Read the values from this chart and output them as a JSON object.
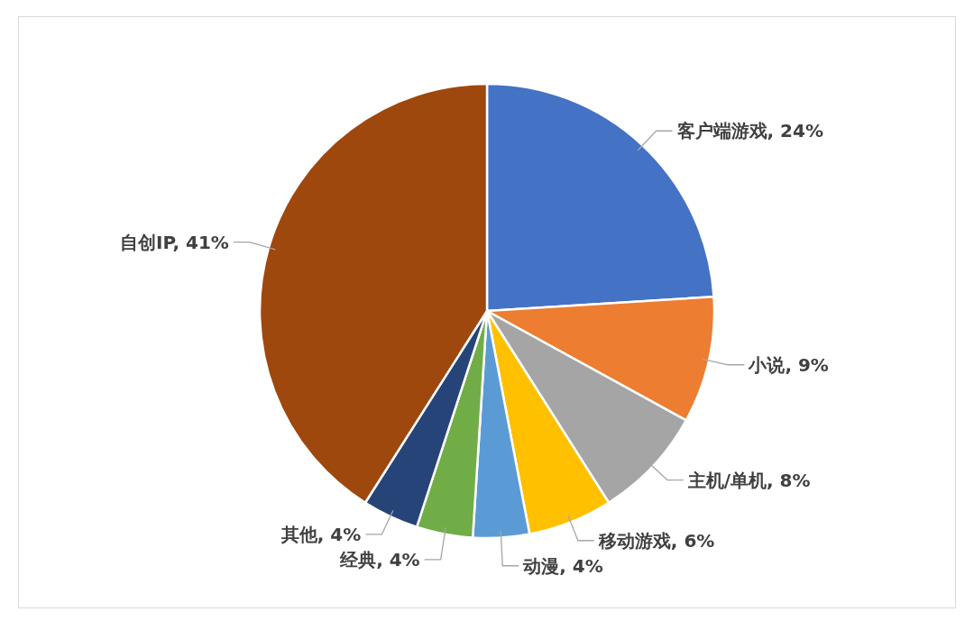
{
  "chart_data": {
    "type": "pie",
    "categories": [
      "客户端游戏",
      "小说",
      "主机/单机",
      "移动游戏",
      "动漫",
      "经典",
      "其他",
      "自创IP"
    ],
    "values": [
      24,
      9,
      8,
      6,
      4,
      4,
      4,
      41
    ],
    "colors": [
      "#4472c4",
      "#ed7d31",
      "#a5a5a5",
      "#ffc000",
      "#5b9bd5",
      "#70ad47",
      "#264478",
      "#9e480e"
    ],
    "value_labels": [
      ", 24%",
      ", 9%",
      ", 8%",
      ", 6%",
      ", 4%",
      ", 4%",
      ", 4%",
      ", 41%"
    ]
  }
}
